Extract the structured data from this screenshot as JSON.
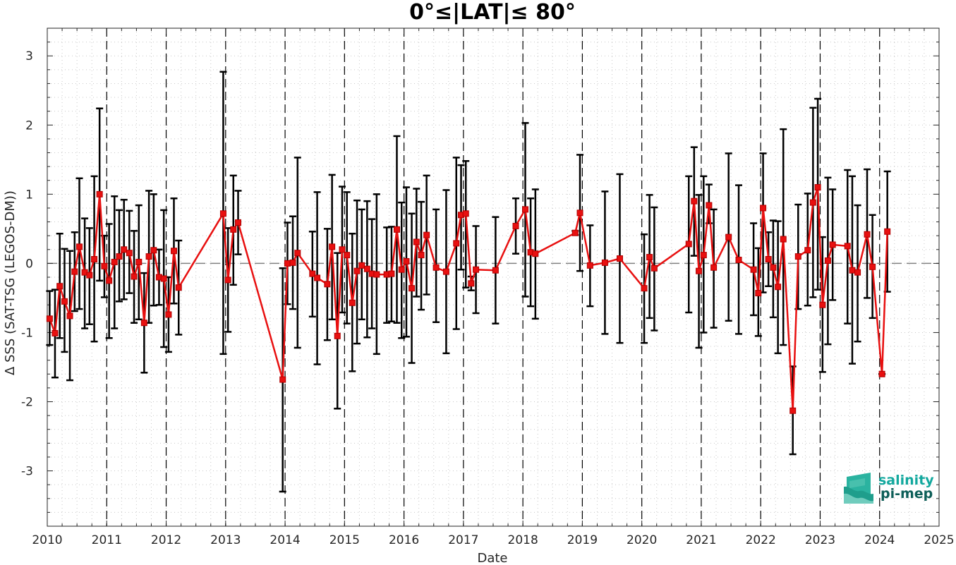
{
  "chart_data": {
    "type": "line",
    "title": "0°≤|LAT|≤ 80°",
    "xlabel": "Date",
    "ylabel": "Δ SSS (SAT-TSG (LEGOS-DM))",
    "xlim": [
      2010,
      2025
    ],
    "ylim": [
      -3.8,
      3.4
    ],
    "x_ticks": [
      "2010",
      "2011",
      "2012",
      "2013",
      "2014",
      "2015",
      "2016",
      "2017",
      "2018",
      "2019",
      "2020",
      "2021",
      "2022",
      "2023",
      "2024",
      "2025"
    ],
    "y_ticks": [
      "-3",
      "-2",
      "-1",
      "0",
      "1",
      "2",
      "3"
    ],
    "x_tick_values": [
      2010,
      2011,
      2012,
      2013,
      2014,
      2015,
      2016,
      2017,
      2018,
      2019,
      2020,
      2021,
      2022,
      2023,
      2024,
      2025
    ],
    "y_tick_values": [
      -3,
      -2,
      -1,
      0,
      1,
      2,
      3
    ],
    "grid": "minor dotted",
    "year_boundaries": [
      2011,
      2012,
      2013,
      2014,
      2015,
      2016,
      2017,
      2018,
      2019,
      2020,
      2021,
      2022,
      2023,
      2024
    ],
    "reference_line": 0,
    "colors": {
      "series": "#e81010",
      "errorbar": "#000000",
      "zero_line": "#808080",
      "logo_text": "#13a89e",
      "logo_text_dark": "#0d5e58"
    },
    "series": [
      {
        "x": [
          2010.04,
          2010.13,
          2010.21,
          2010.29,
          2010.38,
          2010.46,
          2010.54,
          2010.63,
          2010.71,
          2010.79,
          2010.88,
          2010.96,
          2011.04,
          2011.13,
          2011.21,
          2011.29,
          2011.38,
          2011.46,
          2011.54,
          2011.63,
          2011.71,
          2011.79,
          2011.88,
          2011.96,
          2012.04,
          2012.13,
          2012.21,
          2012.96,
          2013.04,
          2013.13,
          2013.21,
          2013.96,
          2014.04,
          2014.13,
          2014.21,
          2014.46,
          2014.54,
          2014.71,
          2014.79,
          2014.88,
          2014.96,
          2015.04,
          2015.13,
          2015.21,
          2015.29,
          2015.38,
          2015.46,
          2015.54,
          2015.71,
          2015.79,
          2015.88,
          2015.96,
          2016.04,
          2016.13,
          2016.21,
          2016.29,
          2016.38,
          2016.54,
          2016.71,
          2016.88,
          2016.96,
          2017.04,
          2017.13,
          2017.21,
          2017.54,
          2017.88,
          2018.04,
          2018.13,
          2018.21,
          2018.88,
          2018.96,
          2019.13,
          2019.38,
          2019.63,
          2020.04,
          2020.13,
          2020.21,
          2020.79,
          2020.88,
          2020.96,
          2021.04,
          2021.13,
          2021.21,
          2021.46,
          2021.63,
          2021.88,
          2021.96,
          2022.04,
          2022.13,
          2022.21,
          2022.29,
          2022.38,
          2022.54,
          2022.63,
          2022.79,
          2022.88,
          2022.96,
          2023.04,
          2023.13,
          2023.21,
          2023.46,
          2023.54,
          2023.63,
          2023.79,
          2023.88,
          2024.04,
          2024.13
        ],
        "y": [
          -0.8,
          -1.01,
          -0.33,
          -0.55,
          -0.76,
          -0.12,
          0.24,
          -0.13,
          -0.17,
          0.06,
          1.0,
          -0.04,
          -0.25,
          0.02,
          0.1,
          0.2,
          0.15,
          -0.19,
          0.02,
          -0.86,
          0.1,
          0.19,
          -0.2,
          -0.22,
          -0.74,
          0.18,
          -0.35,
          0.72,
          -0.24,
          0.49,
          0.59,
          -1.68,
          0.0,
          0.01,
          0.15,
          -0.15,
          -0.21,
          -0.3,
          0.24,
          -1.05,
          0.2,
          0.12,
          -0.57,
          -0.11,
          -0.03,
          -0.08,
          -0.15,
          -0.16,
          -0.16,
          -0.15,
          0.49,
          -0.09,
          0.03,
          -0.36,
          0.31,
          0.12,
          0.41,
          -0.06,
          -0.12,
          0.29,
          0.7,
          0.72,
          -0.29,
          -0.09,
          -0.1,
          0.54,
          0.78,
          0.16,
          0.14,
          0.44,
          0.73,
          -0.03,
          0.01,
          0.07,
          -0.36,
          0.09,
          -0.07,
          0.28,
          0.9,
          -0.11,
          0.12,
          0.84,
          -0.06,
          0.38,
          0.05,
          -0.09,
          -0.43,
          0.8,
          0.06,
          -0.06,
          -0.34,
          0.35,
          -2.13,
          0.1,
          0.19,
          0.88,
          1.1,
          -0.6,
          0.04,
          0.27,
          0.25,
          -0.1,
          -0.13,
          0.42,
          -0.05,
          -1.6,
          0.46
        ],
        "lo": [
          -1.18,
          -1.65,
          -1.08,
          -1.28,
          -1.69,
          -0.69,
          -0.66,
          -0.94,
          -0.88,
          -1.13,
          -0.25,
          -0.49,
          -1.08,
          -0.94,
          -0.55,
          -0.52,
          -0.43,
          -0.86,
          -0.81,
          -1.58,
          -0.86,
          -0.61,
          -0.6,
          -1.21,
          -1.28,
          -0.58,
          -1.03,
          -1.31,
          -0.99,
          -0.31,
          0.13,
          -3.3,
          -0.59,
          -0.66,
          -1.22,
          -0.77,
          -1.46,
          -1.11,
          -0.81,
          -2.1,
          -0.71,
          -0.87,
          -1.56,
          -1.16,
          -0.81,
          -1.07,
          -0.94,
          -1.31,
          -0.86,
          -0.84,
          -0.86,
          -1.08,
          -1.06,
          -1.44,
          -0.48,
          -0.67,
          -0.45,
          -0.85,
          -1.3,
          -0.95,
          -0.09,
          -0.35,
          -0.39,
          -0.72,
          -0.87,
          0.14,
          -0.48,
          -0.62,
          -0.8,
          0.41,
          -0.11,
          -0.62,
          -1.02,
          -1.15,
          -1.15,
          -0.79,
          -0.97,
          -0.71,
          0.11,
          -1.22,
          -1.0,
          0.58,
          -0.93,
          -0.83,
          -1.02,
          -0.75,
          -1.05,
          -0.42,
          -0.33,
          -0.78,
          -1.3,
          -1.18,
          -2.76,
          -0.66,
          -0.61,
          -0.49,
          -0.38,
          -1.57,
          -1.17,
          -0.53,
          -0.87,
          -1.45,
          -1.13,
          -0.5,
          -0.79,
          -1.6,
          -0.41
        ],
        "hi": [
          -0.4,
          -0.38,
          0.43,
          0.21,
          0.18,
          0.45,
          1.23,
          0.65,
          0.51,
          1.26,
          2.24,
          0.4,
          0.57,
          0.97,
          0.77,
          0.92,
          0.76,
          0.47,
          0.84,
          -0.14,
          1.05,
          1.0,
          0.2,
          0.77,
          -0.2,
          0.94,
          0.33,
          2.77,
          0.51,
          1.27,
          1.05,
          -0.07,
          0.59,
          0.68,
          1.53,
          0.46,
          1.03,
          0.5,
          1.28,
          0.15,
          1.11,
          1.03,
          0.43,
          0.91,
          0.78,
          0.9,
          0.64,
          1.0,
          0.52,
          0.53,
          1.84,
          0.88,
          1.1,
          0.72,
          1.08,
          0.89,
          1.27,
          0.78,
          1.06,
          1.53,
          1.42,
          1.48,
          -0.19,
          0.54,
          0.67,
          0.94,
          2.03,
          0.94,
          1.07,
          0.47,
          1.57,
          0.55,
          1.04,
          1.29,
          0.42,
          0.99,
          0.81,
          1.26,
          1.68,
          0.99,
          1.26,
          1.14,
          0.78,
          1.59,
          1.13,
          0.58,
          0.22,
          1.59,
          0.45,
          0.62,
          0.61,
          1.94,
          -1.49,
          0.85,
          1.01,
          2.25,
          2.38,
          0.38,
          1.24,
          1.07,
          1.35,
          1.26,
          0.84,
          1.36,
          0.7,
          -1.6,
          1.33
        ]
      }
    ]
  },
  "logo": {
    "line1": "salinity",
    "line2": "pi-mep"
  }
}
